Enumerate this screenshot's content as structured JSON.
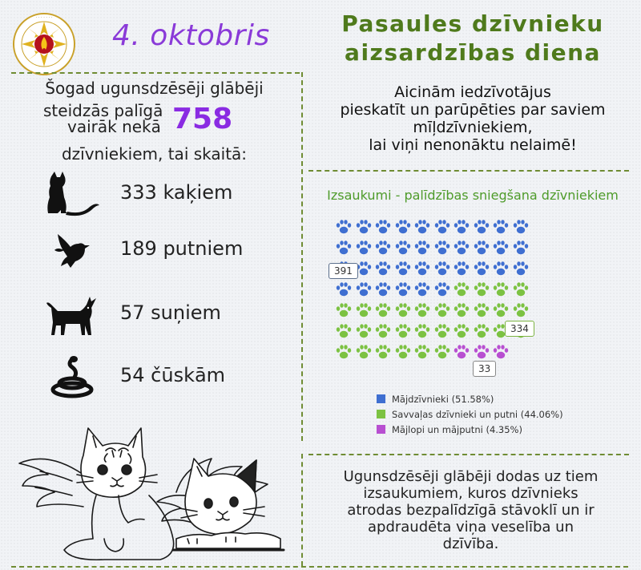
{
  "header": {
    "date": "4. oktobris",
    "title_line1": "Pasaules dzīvnieku",
    "title_line2": "aizsardzības diena"
  },
  "intro": {
    "line1": "Šogad ugunsdzēsēji glābēji",
    "line2": "steidzās palīgā",
    "line3": "vairāk nekā",
    "total": "758",
    "line4": "dzīvniekiem, tai skaitā:"
  },
  "stats": [
    {
      "icon": "cat-icon",
      "text": "333 kaķiem"
    },
    {
      "icon": "bird-icon",
      "text": "189 putniem"
    },
    {
      "icon": "dog-icon",
      "text": "57 suņiem"
    },
    {
      "icon": "snake-icon",
      "text": "54 čūskām"
    }
  ],
  "appeal": {
    "line1": "Aicinām iedzīvotājus",
    "line2": "pieskatīt un parūpēties par saviem",
    "line3": "mīļdzīvniekiem,",
    "line4": "lai viņi nenonāktu nelaimē!"
  },
  "chart_data": {
    "type": "pictogram",
    "title": "Izsaukumi - palīdzības sniegšana dzīvniekiem",
    "icon": "paw-icon",
    "categories": [
      "Mājdzīvnieki",
      "Savvaļas dzīvnieki un putni",
      "Mājlopi un mājputni"
    ],
    "values": [
      391,
      334,
      33
    ],
    "percentages": [
      51.58,
      44.06,
      4.35
    ],
    "legend_labels": [
      "Mājdzīvnieki (51.58%)",
      "Savvaļas dzīvnieki un putni (44.06%)",
      "Mājlopi un mājputni (4.35%)"
    ],
    "icon_counts": [
      36,
      30,
      3
    ],
    "columns": 10,
    "colors": [
      "#3f6fd1",
      "#7cc242",
      "#b84fd1"
    ],
    "data_labels": [
      "391",
      "334",
      "33"
    ],
    "legend_position": "bottom"
  },
  "bottom_text": {
    "line1": "Ugunsdzēsēji glābēji dodas uz tiem",
    "line2": "izsaukumiem, kuros dzīvnieks",
    "line3": "atrodas bezpalīdzīgā stāvoklī un ir",
    "line4": "apdraudēta viņa veselība un",
    "line5": "dzīvība."
  },
  "colors": {
    "accent_green": "#4f7a1c",
    "accent_purple": "#8a2be2",
    "divider": "#6f8c33"
  },
  "logo": {
    "icon": "fire-service-emblem",
    "ring_text": "UGUNSDZĒSĪBAS UN GLĀBŠANAS DIENESTS"
  },
  "illustration": {
    "icon": "angel-cats-illustration"
  }
}
